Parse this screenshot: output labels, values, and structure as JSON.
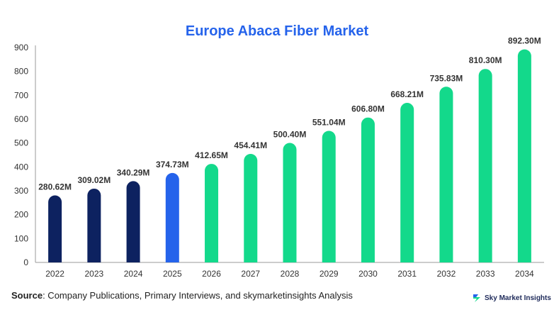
{
  "chart_data": {
    "type": "bar",
    "title": "Europe Abaca Fiber Market",
    "categories": [
      "2022",
      "2023",
      "2024",
      "2025",
      "2026",
      "2027",
      "2028",
      "2029",
      "2030",
      "2031",
      "2032",
      "2033",
      "2034"
    ],
    "values": [
      280.62,
      309.02,
      340.29,
      374.73,
      412.65,
      454.41,
      500.4,
      551.04,
      606.8,
      668.21,
      735.83,
      810.3,
      892.3
    ],
    "data_labels": [
      "280.62M",
      "309.02M",
      "340.29M",
      "374.73M",
      "412.65M",
      "454.41M",
      "500.40M",
      "551.04M",
      "606.80M",
      "668.21M",
      "735.83M",
      "810.30M",
      "892.30M"
    ],
    "yticks": [
      "0",
      "100",
      "200",
      "300",
      "400",
      "500",
      "600",
      "700",
      "800",
      "900"
    ],
    "ylim": [
      0,
      900
    ],
    "xlabel": "",
    "ylabel": "",
    "grid": false,
    "colors": {
      "historical": "#0d2260",
      "current": "#2563eb",
      "forecast": "#13d98b",
      "title": "#2563eb"
    },
    "bar_color_groups": [
      "historical",
      "historical",
      "historical",
      "current",
      "forecast",
      "forecast",
      "forecast",
      "forecast",
      "forecast",
      "forecast",
      "forecast",
      "forecast",
      "forecast"
    ]
  },
  "footer": {
    "source_label": "Source",
    "source_text": ": Company Publications, Primary Interviews, and skymarketinsights Analysis",
    "logo_text": "Sky Market Insights",
    "logo_icon": "sky-market-insights-logo-icon"
  }
}
